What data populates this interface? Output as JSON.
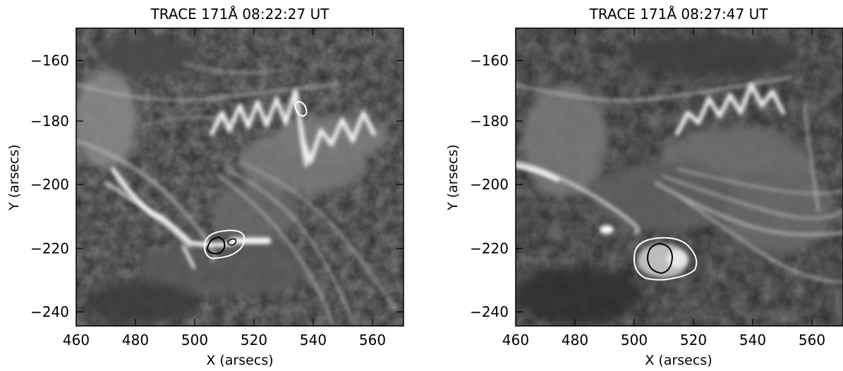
{
  "panels": [
    {
      "title": "TRACE 171Å  08:22:27 UT",
      "xlabel": "X (arsecs)",
      "ylabel": "Y (arsecs)",
      "x_ticks": [
        "460",
        "480",
        "500",
        "520",
        "540",
        "560"
      ],
      "y_ticks": [
        "−160",
        "−180",
        "−200",
        "−220",
        "−240"
      ]
    },
    {
      "title": "TRACE 171Å  08:27:47 UT",
      "xlabel": "X (arsecs)",
      "ylabel": "Y (arsecs)",
      "x_ticks": [
        "460",
        "480",
        "500",
        "520",
        "540",
        "560"
      ],
      "y_ticks": [
        "−160",
        "−180",
        "−200",
        "−220",
        "−240"
      ]
    }
  ],
  "colors": {
    "background": "#ffffff",
    "image_base": "#2c2c2c",
    "contour_white": "#ffffff",
    "contour_black": "#000000"
  }
}
